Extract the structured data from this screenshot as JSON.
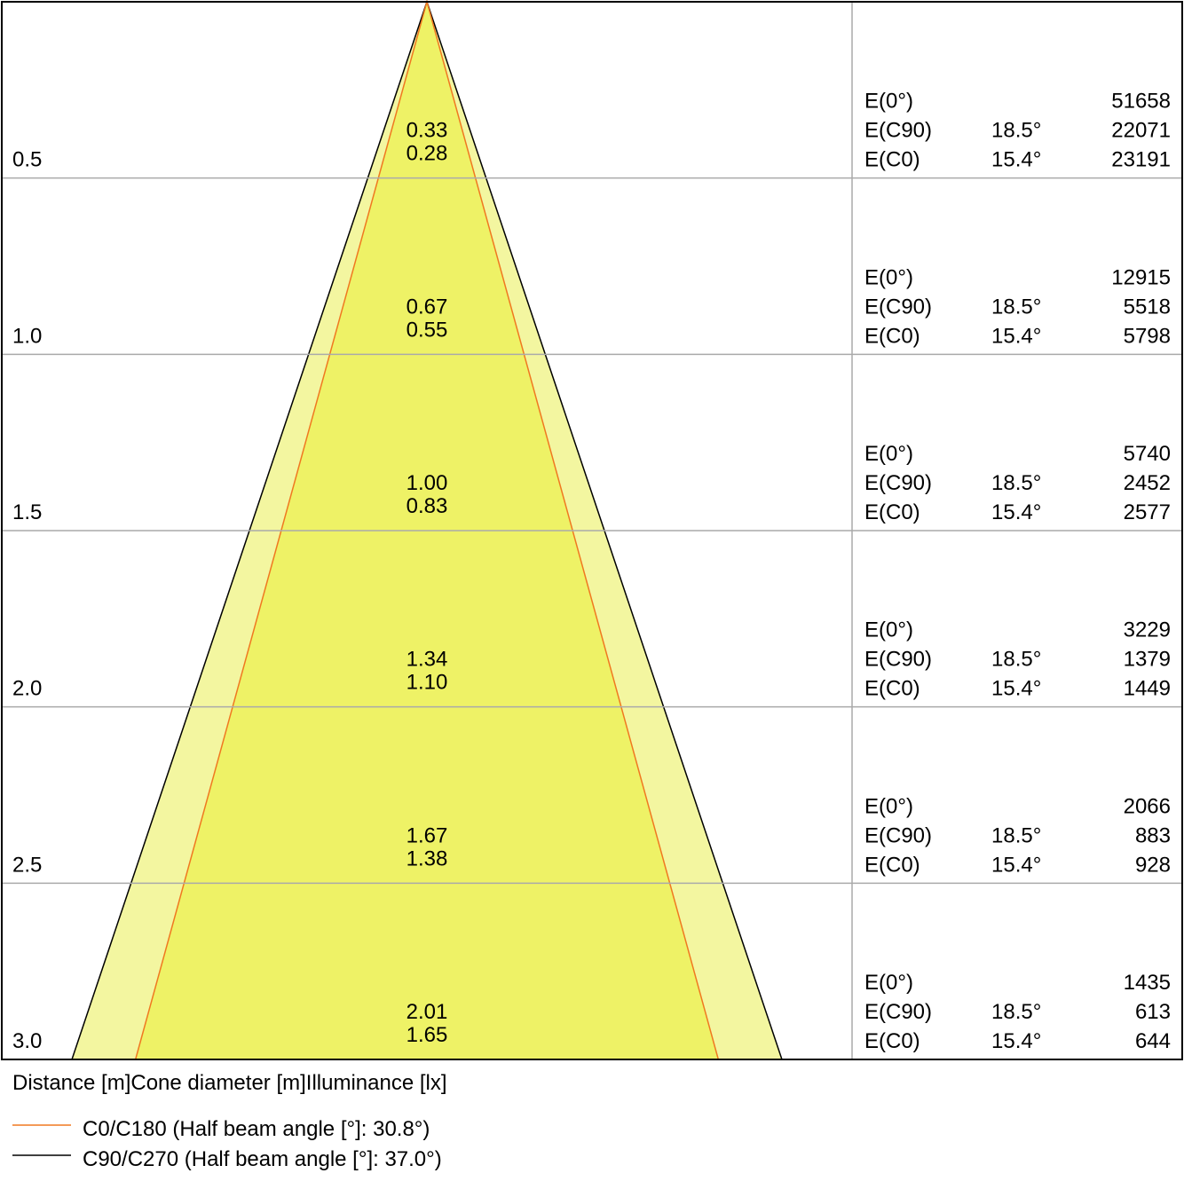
{
  "rows": [
    {
      "distance": "0.5",
      "diameter_c90": "0.33",
      "diameter_c0": "0.28",
      "illuminance": [
        {
          "label": "E(0°)",
          "value": 51658
        },
        {
          "label": "E(C90)",
          "angle": "18.5°",
          "value": 22071
        },
        {
          "label": "E(C0)",
          "angle": "15.4°",
          "value": 23191
        }
      ]
    },
    {
      "distance": "1.0",
      "diameter_c90": "0.67",
      "diameter_c0": "0.55",
      "illuminance": [
        {
          "label": "E(0°)",
          "value": 12915
        },
        {
          "label": "E(C90)",
          "angle": "18.5°",
          "value": 5518
        },
        {
          "label": "E(C0)",
          "angle": "15.4°",
          "value": 5798
        }
      ]
    },
    {
      "distance": "1.5",
      "diameter_c90": "1.00",
      "diameter_c0": "0.83",
      "illuminance": [
        {
          "label": "E(0°)",
          "value": 5740
        },
        {
          "label": "E(C90)",
          "angle": "18.5°",
          "value": 2452
        },
        {
          "label": "E(C0)",
          "angle": "15.4°",
          "value": 2577
        }
      ]
    },
    {
      "distance": "2.0",
      "diameter_c90": "1.34",
      "diameter_c0": "1.10",
      "illuminance": [
        {
          "label": "E(0°)",
          "value": 3229
        },
        {
          "label": "E(C90)",
          "angle": "18.5°",
          "value": 1379
        },
        {
          "label": "E(C0)",
          "angle": "15.4°",
          "value": 1449
        }
      ]
    },
    {
      "distance": "2.5",
      "diameter_c90": "1.67",
      "diameter_c0": "1.38",
      "illuminance": [
        {
          "label": "E(0°)",
          "value": 2066
        },
        {
          "label": "E(C90)",
          "angle": "18.5°",
          "value": 883
        },
        {
          "label": "E(C0)",
          "angle": "15.4°",
          "value": 928
        }
      ]
    },
    {
      "distance": "3.0",
      "diameter_c90": "2.01",
      "diameter_c0": "1.65",
      "illuminance": [
        {
          "label": "E(0°)",
          "value": 1435
        },
        {
          "label": "E(C90)",
          "angle": "18.5°",
          "value": 613
        },
        {
          "label": "E(C0)",
          "angle": "15.4°",
          "value": 644
        }
      ]
    }
  ],
  "caption": "Distance [m]Cone diameter [m]Illuminance [lx]",
  "legend": [
    {
      "label": "C0/C180 (Half beam angle [°]: 30.8°)",
      "color": "#f07820"
    },
    {
      "label": "C90/C270 (Half beam angle [°]: 37.0°)",
      "color": "#000000"
    }
  ]
}
